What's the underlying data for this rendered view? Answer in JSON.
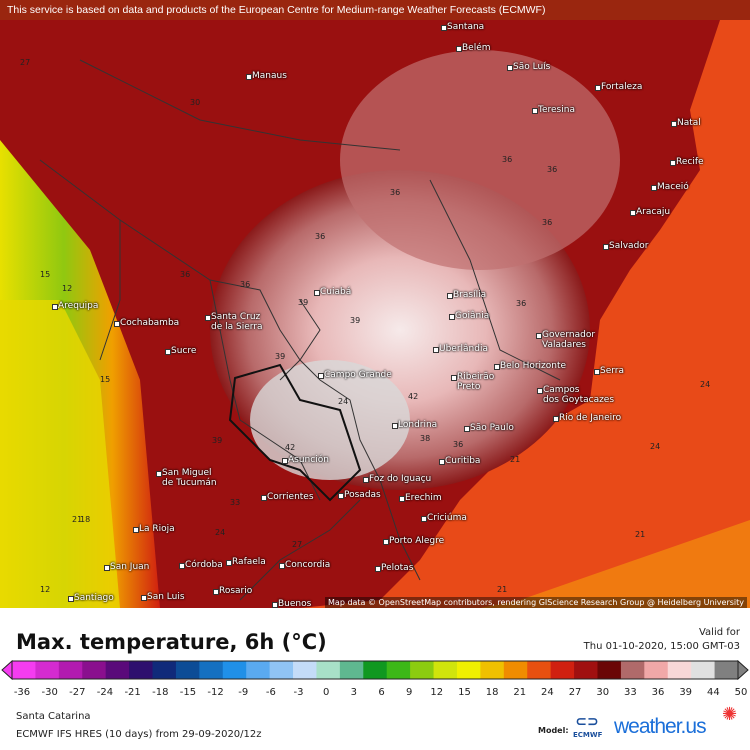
{
  "notice": "This service is based on data and products of the European Centre for Medium-range Weather Forecasts (ECMWF)",
  "attribution": "Map data © OpenStreetMap contributors, rendering GIScience Research Group @ Heidelberg University",
  "cities": [
    "Santana",
    "Belém",
    "São Luís",
    "Manaus",
    "Fortaleza",
    "Teresina",
    "Natal",
    "Recife",
    "Maceió",
    "Aracaju",
    "Salvador",
    "Cuiabá",
    "Brasília",
    "Goiânia",
    "Arequipa",
    "Santa Cruz\nde la Sierra",
    "Cochabamba",
    "Governador\nValadares",
    "Uberlândia",
    "Sucre",
    "Belo Horizonte",
    "Campo Grande",
    "Ribeirão\nPreto",
    "Serra",
    "Campos\ndos Goytacazes",
    "Rio de Janeiro",
    "Londrina",
    "São Paulo",
    "Curitiba",
    "Asunción",
    "San Miguel\nde Tucumán",
    "Foz do Iguaçu",
    "Corrientes",
    "Posadas",
    "Erechim",
    "Criciúma",
    "La Rioja",
    "Porto Alegre",
    "Córdoba",
    "Rafaela",
    "Concordia",
    "San Juan",
    "Pelotas",
    "Santiago",
    "San Luis",
    "Rosario",
    "Buenos"
  ],
  "contour_values": [
    "27",
    "30",
    "36",
    "36",
    "36",
    "36",
    "36",
    "36",
    "36",
    "39",
    "39",
    "39",
    "42",
    "42",
    "39",
    "36",
    "24",
    "24",
    "24",
    "21",
    "21",
    "21",
    "18",
    "15",
    "15",
    "12",
    "12",
    "21",
    "24",
    "27",
    "33",
    "36",
    "38"
  ],
  "title": "Max. temperature, 6h (°C)",
  "valid_label": "Valid for",
  "valid_time": "Thu 01-10-2020, 15:00 GMT-03",
  "legend": {
    "ticks": [
      "-36",
      "-30",
      "-27",
      "-24",
      "-21",
      "-18",
      "-15",
      "-12",
      "-9",
      "-6",
      "-3",
      "0",
      "3",
      "6",
      "9",
      "12",
      "15",
      "18",
      "21",
      "24",
      "27",
      "30",
      "33",
      "36",
      "39",
      "44",
      "50"
    ],
    "colors": [
      "#f53cf0",
      "#d42bd0",
      "#b21ab0",
      "#8a0f8e",
      "#5a0a7a",
      "#2e0f6e",
      "#102a7a",
      "#0d4c96",
      "#1570c0",
      "#2090e8",
      "#5aaaf0",
      "#90c4f4",
      "#c4dcf8",
      "#a8e0c8",
      "#5fb890",
      "#109820",
      "#3cb818",
      "#8ccc10",
      "#d0e40c",
      "#f0f000",
      "#f0c000",
      "#f08c00",
      "#e85010",
      "#d02010",
      "#a01010",
      "#6a0606",
      "#b06a6a",
      "#f0a8a8",
      "#f8d8d8",
      "#e0e0e0",
      "#808080"
    ]
  },
  "location": "Santa Catarina",
  "model_run": "ECMWF IFS HRES (10 days) from 29-09-2020/12z",
  "model_label": "Model:",
  "ecmwf_logo": "ECMWF",
  "brand": "weather.us"
}
